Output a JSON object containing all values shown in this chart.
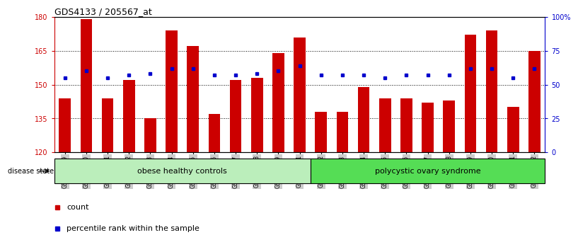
{
  "title": "GDS4133 / 205567_at",
  "samples": [
    "GSM201849",
    "GSM201850",
    "GSM201851",
    "GSM201852",
    "GSM201853",
    "GSM201854",
    "GSM201855",
    "GSM201856",
    "GSM201857",
    "GSM201858",
    "GSM201859",
    "GSM201861",
    "GSM201862",
    "GSM201863",
    "GSM201864",
    "GSM201865",
    "GSM201866",
    "GSM201867",
    "GSM201868",
    "GSM201869",
    "GSM201870",
    "GSM201871",
    "GSM201872"
  ],
  "bar_heights": [
    144,
    179,
    144,
    152,
    135,
    174,
    167,
    137,
    152,
    153,
    164,
    171,
    138,
    138,
    149,
    144,
    144,
    142,
    143,
    172,
    174,
    140,
    165
  ],
  "percentile_ranks": [
    55,
    60,
    55,
    57,
    58,
    62,
    62,
    57,
    57,
    58,
    60,
    64,
    57,
    57,
    57,
    55,
    57,
    57,
    57,
    62,
    62,
    55,
    62
  ],
  "group1_label": "obese healthy controls",
  "group1_count": 12,
  "group2_label": "polycystic ovary syndrome",
  "group2_count": 11,
  "ymin": 120,
  "ymax": 180,
  "yticks": [
    120,
    135,
    150,
    165,
    180
  ],
  "right_yticks": [
    0,
    25,
    50,
    75,
    100
  ],
  "right_ytick_labels": [
    "0",
    "25",
    "50",
    "75",
    "100%"
  ],
  "bar_color": "#cc0000",
  "dot_color": "#0000cc",
  "group1_color": "#bbeebb",
  "group2_color": "#55dd55",
  "label_bg_color": "#cccccc"
}
